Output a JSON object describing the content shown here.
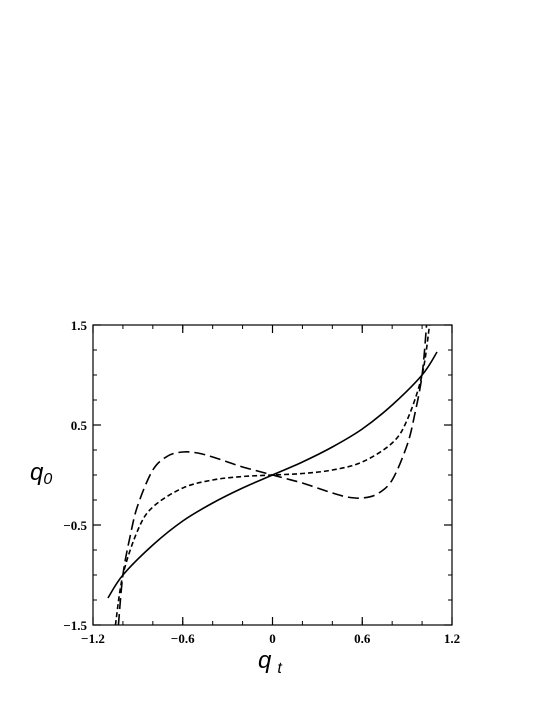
{
  "chart_data": {
    "type": "line",
    "xlabel": {
      "main": "q",
      "sub": "t"
    },
    "ylabel": {
      "main": "q",
      "sub": "0"
    },
    "xlim": [
      -1.2,
      1.2
    ],
    "ylim": [
      -1.5,
      1.5
    ],
    "x_ticks": [
      "-1.2",
      "-0.6",
      "0",
      "0.6",
      "1.2"
    ],
    "y_ticks": [
      "1.5",
      "0.5",
      "-0.5",
      "-1.5"
    ],
    "grid": false,
    "legend": "none",
    "series": [
      {
        "style": "solid",
        "x": [
          -1.1,
          -1.0,
          -0.8,
          -0.6,
          -0.4,
          -0.2,
          0.0,
          0.2,
          0.4,
          0.6,
          0.8,
          1.0,
          1.1
        ],
        "y": [
          -1.23,
          -1.0,
          -0.7,
          -0.46,
          -0.28,
          -0.13,
          0.0,
          0.13,
          0.28,
          0.46,
          0.7,
          1.0,
          1.23
        ]
      },
      {
        "style": "short-dash",
        "x": [
          -1.05,
          -1.0,
          -0.9,
          -0.8,
          -0.6,
          -0.4,
          -0.2,
          0.0,
          0.2,
          0.4,
          0.6,
          0.8,
          0.9,
          1.0,
          1.05
        ],
        "y": [
          -1.5,
          -1.0,
          -0.55,
          -0.32,
          -0.13,
          -0.05,
          -0.015,
          0.0,
          0.015,
          0.05,
          0.13,
          0.32,
          0.55,
          1.0,
          1.5
        ]
      },
      {
        "style": "long-dash",
        "x": [
          -1.03,
          -1.0,
          -0.95,
          -0.9,
          -0.8,
          -0.7,
          -0.6,
          -0.5,
          -0.4,
          -0.3,
          -0.2,
          -0.1,
          0.0,
          0.1,
          0.2,
          0.3,
          0.4,
          0.5,
          0.6,
          0.7,
          0.8,
          0.9,
          0.95,
          1.0,
          1.03
        ],
        "y": [
          -1.5,
          -1.0,
          -0.6,
          -0.3,
          0.05,
          0.19,
          0.23,
          0.22,
          0.18,
          0.13,
          0.08,
          0.04,
          0.0,
          -0.04,
          -0.08,
          -0.13,
          -0.18,
          -0.22,
          -0.23,
          -0.19,
          -0.05,
          0.3,
          0.6,
          1.0,
          1.5
        ]
      }
    ]
  }
}
